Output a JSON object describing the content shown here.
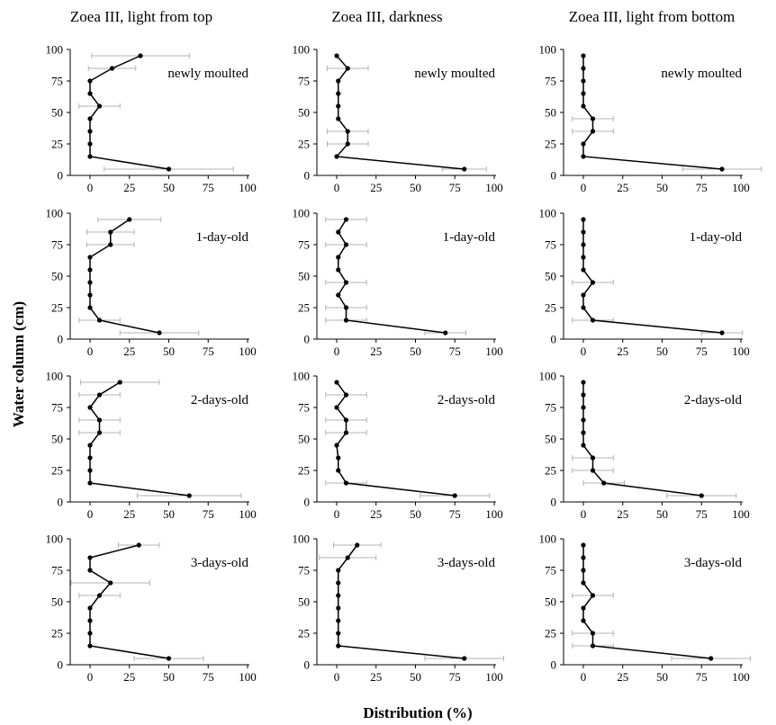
{
  "figure": {
    "ylabel": "Water column (cm)",
    "xlabel": "Distribution (%)"
  },
  "chart_data": [
    {
      "type": "line",
      "column_title": "Zoea III, light from top",
      "panel_label": "newly moulted",
      "x_range": [
        0,
        100
      ],
      "y_range": [
        0,
        100
      ],
      "depths": [
        95,
        85,
        75,
        65,
        55,
        45,
        35,
        25,
        15,
        5
      ],
      "values": [
        32,
        14,
        0,
        0,
        6,
        0,
        0,
        0,
        0,
        50
      ],
      "errors": [
        31,
        15,
        0,
        0,
        13,
        0,
        0,
        0,
        0,
        41
      ]
    },
    {
      "type": "line",
      "column_title": "Zoea III, darkness",
      "panel_label": "newly moulted",
      "x_range": [
        0,
        100
      ],
      "y_range": [
        0,
        100
      ],
      "depths": [
        95,
        85,
        75,
        65,
        55,
        45,
        35,
        25,
        15,
        5
      ],
      "values": [
        0,
        7,
        1,
        1,
        1,
        1,
        7,
        7,
        0,
        81
      ],
      "errors": [
        0,
        13,
        0,
        0,
        0,
        0,
        13,
        13,
        0,
        14
      ]
    },
    {
      "type": "line",
      "column_title": "Zoea III, light from bottom",
      "panel_label": "newly moulted",
      "x_range": [
        0,
        100
      ],
      "y_range": [
        0,
        100
      ],
      "depths": [
        95,
        85,
        75,
        65,
        55,
        45,
        35,
        25,
        15,
        5
      ],
      "values": [
        0,
        0,
        0,
        0,
        0,
        6,
        6,
        0,
        0,
        88
      ],
      "errors": [
        0,
        0,
        0,
        0,
        0,
        13,
        13,
        0,
        0,
        25
      ]
    },
    {
      "type": "line",
      "column_title": "Zoea III, light from top",
      "panel_label": "1-day-old",
      "x_range": [
        0,
        100
      ],
      "y_range": [
        0,
        100
      ],
      "depths": [
        95,
        85,
        75,
        65,
        55,
        45,
        35,
        25,
        15,
        5
      ],
      "values": [
        25,
        13,
        13,
        0,
        0,
        0,
        0,
        0,
        6,
        44
      ],
      "errors": [
        20,
        15,
        15,
        0,
        0,
        0,
        0,
        0,
        13,
        25
      ]
    },
    {
      "type": "line",
      "column_title": "Zoea III, darkness",
      "panel_label": "1-day-old",
      "x_range": [
        0,
        100
      ],
      "y_range": [
        0,
        100
      ],
      "depths": [
        95,
        85,
        75,
        65,
        55,
        45,
        35,
        25,
        15,
        5
      ],
      "values": [
        6,
        1,
        6,
        1,
        1,
        6,
        1,
        6,
        6,
        69
      ],
      "errors": [
        13,
        0,
        13,
        0,
        0,
        13,
        0,
        13,
        13,
        13
      ]
    },
    {
      "type": "line",
      "column_title": "Zoea III, light from bottom",
      "panel_label": "1-day-old",
      "x_range": [
        0,
        100
      ],
      "y_range": [
        0,
        100
      ],
      "depths": [
        95,
        85,
        75,
        65,
        55,
        45,
        35,
        25,
        15,
        5
      ],
      "values": [
        0,
        0,
        0,
        0,
        0,
        6,
        0,
        0,
        6,
        88
      ],
      "errors": [
        0,
        0,
        0,
        0,
        0,
        13,
        0,
        0,
        13,
        13
      ]
    },
    {
      "type": "line",
      "column_title": "Zoea III, light from top",
      "panel_label": "2-days-old",
      "x_range": [
        0,
        100
      ],
      "y_range": [
        0,
        100
      ],
      "depths": [
        95,
        85,
        75,
        65,
        55,
        45,
        35,
        25,
        15,
        5
      ],
      "values": [
        19,
        6,
        0,
        6,
        6,
        0,
        0,
        0,
        0,
        63
      ],
      "errors": [
        25,
        13,
        0,
        13,
        13,
        0,
        0,
        0,
        0,
        33
      ]
    },
    {
      "type": "line",
      "column_title": "Zoea III, darkness",
      "panel_label": "2-days-old",
      "x_range": [
        0,
        100
      ],
      "y_range": [
        0,
        100
      ],
      "depths": [
        95,
        85,
        75,
        65,
        55,
        45,
        35,
        25,
        15,
        5
      ],
      "values": [
        0,
        6,
        0,
        6,
        6,
        0,
        1,
        1,
        6,
        75
      ],
      "errors": [
        0,
        13,
        0,
        13,
        13,
        0,
        0,
        0,
        13,
        22
      ]
    },
    {
      "type": "line",
      "column_title": "Zoea III, light from bottom",
      "panel_label": "2-days-old",
      "x_range": [
        0,
        100
      ],
      "y_range": [
        0,
        100
      ],
      "depths": [
        95,
        85,
        75,
        65,
        55,
        45,
        35,
        25,
        15,
        5
      ],
      "values": [
        0,
        0,
        0,
        0,
        0,
        0,
        6,
        6,
        13,
        75
      ],
      "errors": [
        0,
        0,
        0,
        0,
        0,
        0,
        13,
        13,
        13,
        22
      ]
    },
    {
      "type": "line",
      "column_title": "Zoea III, light from top",
      "panel_label": "3-days-old",
      "x_range": [
        0,
        100
      ],
      "y_range": [
        0,
        100
      ],
      "depths": [
        95,
        85,
        75,
        65,
        55,
        45,
        35,
        25,
        15,
        5
      ],
      "values": [
        31,
        0,
        0,
        13,
        6,
        0,
        0,
        0,
        0,
        50
      ],
      "errors": [
        13,
        0,
        0,
        25,
        13,
        0,
        0,
        0,
        0,
        22
      ]
    },
    {
      "type": "line",
      "column_title": "Zoea III, darkness",
      "panel_label": "3-days-old",
      "x_range": [
        0,
        100
      ],
      "y_range": [
        0,
        100
      ],
      "depths": [
        95,
        85,
        75,
        65,
        55,
        45,
        35,
        25,
        15,
        5
      ],
      "values": [
        13,
        7,
        1,
        1,
        1,
        1,
        1,
        1,
        1,
        81
      ],
      "errors": [
        15,
        18,
        0,
        0,
        0,
        0,
        0,
        0,
        0,
        25
      ]
    },
    {
      "type": "line",
      "column_title": "Zoea III, light from bottom",
      "panel_label": "3-days-old",
      "x_range": [
        0,
        100
      ],
      "y_range": [
        0,
        100
      ],
      "depths": [
        95,
        85,
        75,
        65,
        55,
        45,
        35,
        25,
        15,
        5
      ],
      "values": [
        0,
        0,
        0,
        0,
        6,
        0,
        0,
        6,
        6,
        81
      ],
      "errors": [
        0,
        0,
        0,
        0,
        13,
        0,
        0,
        13,
        13,
        25
      ]
    }
  ],
  "axis": {
    "x_ticks": [
      "0",
      "25",
      "50",
      "75",
      "100"
    ],
    "y_ticks": [
      "0",
      "25",
      "50",
      "75",
      "100"
    ]
  },
  "colors": {
    "line": "#000000",
    "error_bar": "#b3b3b3",
    "axis": "#000000",
    "background": "#ffffff"
  }
}
